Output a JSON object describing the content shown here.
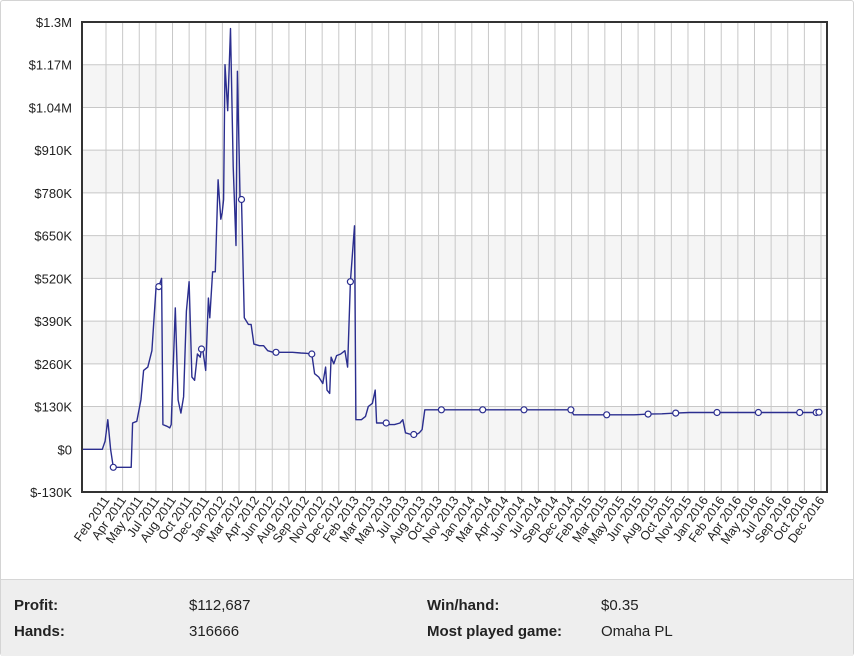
{
  "chart_data": {
    "type": "line",
    "title": "",
    "xlabel": "",
    "ylabel": "",
    "y_ticks": [
      "$-130K",
      "$0",
      "$130K",
      "$260K",
      "$390K",
      "$520K",
      "$650K",
      "$780K",
      "$910K",
      "$1.04M",
      "$1.17M",
      "$1.3M"
    ],
    "y_tick_values": [
      -130000,
      0,
      130000,
      260000,
      390000,
      520000,
      650000,
      780000,
      910000,
      1040000,
      1170000,
      1300000
    ],
    "ylim": [
      -130000,
      1300000
    ],
    "x_ticks": [
      "Feb 2011",
      "Apr 2011",
      "May 2011",
      "Jul 2011",
      "Aug 2011",
      "Oct 2011",
      "Dec 2011",
      "Jan 2012",
      "Mar 2012",
      "Apr 2012",
      "Jun 2012",
      "Aug 2012",
      "Sep 2012",
      "Nov 2012",
      "Dec 2012",
      "Feb 2013",
      "Mar 2013",
      "May 2013",
      "Jul 2013",
      "Aug 2013",
      "Oct 2013",
      "Nov 2013",
      "Jan 2014",
      "Mar 2014",
      "Apr 2014",
      "Jun 2014",
      "Jul 2014",
      "Sep 2014",
      "Dec 2014",
      "Feb 2015",
      "Mar 2015",
      "May 2015",
      "Jun 2015",
      "Aug 2015",
      "Oct 2015",
      "Nov 2015",
      "Jan 2016",
      "Feb 2016",
      "Apr 2016",
      "May 2016",
      "Jul 2016",
      "Sep 2016",
      "Oct 2016",
      "Dec 2016"
    ],
    "grid": true,
    "line_color": "#2b2e8f",
    "series": [
      {
        "points": [
          [
            0,
            0
          ],
          [
            0.7,
            0
          ],
          [
            0.8,
            25000
          ],
          [
            0.9,
            90000
          ],
          [
            1.0,
            0
          ],
          [
            1.1,
            -55000
          ],
          [
            1.3,
            -55000
          ],
          [
            1.6,
            -55000
          ],
          [
            1.75,
            -55000
          ],
          [
            1.8,
            80000
          ],
          [
            1.95,
            85000
          ],
          [
            2.1,
            150000
          ],
          [
            2.2,
            240000
          ],
          [
            2.35,
            250000
          ],
          [
            2.5,
            300000
          ],
          [
            2.65,
            490000
          ],
          [
            2.75,
            495000
          ],
          [
            2.85,
            520000
          ],
          [
            2.9,
            75000
          ],
          [
            3.05,
            70000
          ],
          [
            3.15,
            65000
          ],
          [
            3.2,
            75000
          ],
          [
            3.35,
            430000
          ],
          [
            3.45,
            150000
          ],
          [
            3.55,
            110000
          ],
          [
            3.65,
            160000
          ],
          [
            3.75,
            420000
          ],
          [
            3.85,
            510000
          ],
          [
            3.95,
            220000
          ],
          [
            4.05,
            210000
          ],
          [
            4.15,
            290000
          ],
          [
            4.25,
            280000
          ],
          [
            4.3,
            305000
          ],
          [
            4.35,
            300000
          ],
          [
            4.45,
            240000
          ],
          [
            4.55,
            460000
          ],
          [
            4.6,
            400000
          ],
          [
            4.7,
            540000
          ],
          [
            4.8,
            540000
          ],
          [
            4.9,
            820000
          ],
          [
            5.0,
            700000
          ],
          [
            5.05,
            720000
          ],
          [
            5.1,
            760000
          ],
          [
            5.15,
            1170000
          ],
          [
            5.25,
            1030000
          ],
          [
            5.35,
            1280000
          ],
          [
            5.45,
            860000
          ],
          [
            5.55,
            620000
          ],
          [
            5.6,
            1150000
          ],
          [
            5.7,
            760000
          ],
          [
            5.75,
            760000
          ],
          [
            5.85,
            400000
          ],
          [
            6.0,
            380000
          ],
          [
            6.1,
            380000
          ],
          [
            6.2,
            320000
          ],
          [
            6.4,
            315000
          ],
          [
            6.55,
            315000
          ],
          [
            6.7,
            300000
          ],
          [
            6.9,
            295000
          ],
          [
            7.1,
            295000
          ],
          [
            7.3,
            295000
          ],
          [
            7.6,
            295000
          ],
          [
            7.9,
            293000
          ],
          [
            8.1,
            292000
          ],
          [
            8.3,
            290000
          ],
          [
            8.4,
            230000
          ],
          [
            8.55,
            220000
          ],
          [
            8.7,
            200000
          ],
          [
            8.8,
            250000
          ],
          [
            8.85,
            180000
          ],
          [
            8.95,
            170000
          ],
          [
            9.0,
            280000
          ],
          [
            9.1,
            260000
          ],
          [
            9.2,
            285000
          ],
          [
            9.35,
            290000
          ],
          [
            9.5,
            300000
          ],
          [
            9.6,
            250000
          ],
          [
            9.7,
            510000
          ],
          [
            9.85,
            680000
          ],
          [
            9.9,
            90000
          ],
          [
            10.1,
            90000
          ],
          [
            10.25,
            100000
          ],
          [
            10.35,
            130000
          ],
          [
            10.5,
            140000
          ],
          [
            10.6,
            180000
          ],
          [
            10.65,
            80000
          ],
          [
            10.8,
            80000
          ],
          [
            10.95,
            80000
          ],
          [
            11.1,
            75000
          ],
          [
            11.3,
            75000
          ],
          [
            11.5,
            80000
          ],
          [
            11.6,
            90000
          ],
          [
            11.7,
            50000
          ],
          [
            11.9,
            45000
          ],
          [
            12.1,
            45000
          ],
          [
            12.2,
            50000
          ],
          [
            12.3,
            60000
          ],
          [
            12.4,
            120000
          ],
          [
            12.6,
            120000
          ],
          [
            13.0,
            120000
          ],
          [
            14.0,
            120000
          ],
          [
            15.0,
            120000
          ],
          [
            16.0,
            120000
          ],
          [
            17.0,
            120000
          ],
          [
            17.7,
            120000
          ],
          [
            17.8,
            105000
          ],
          [
            18.5,
            105000
          ],
          [
            19.0,
            105000
          ],
          [
            19.5,
            105000
          ],
          [
            20.0,
            105000
          ],
          [
            20.5,
            107000
          ],
          [
            21.0,
            108000
          ],
          [
            21.5,
            110000
          ],
          [
            22.0,
            112000
          ],
          [
            23.0,
            112000
          ],
          [
            24.0,
            112000
          ],
          [
            25.0,
            112000
          ],
          [
            26.0,
            112000
          ],
          [
            26.5,
            112000
          ],
          [
            26.7,
            112687
          ]
        ],
        "markers": [
          [
            1.1,
            -55000
          ],
          [
            2.75,
            495000
          ],
          [
            4.3,
            305000
          ],
          [
            5.75,
            760000
          ],
          [
            7.0,
            295000
          ],
          [
            8.3,
            290000
          ],
          [
            9.7,
            510000
          ],
          [
            11.0,
            80000
          ],
          [
            12.0,
            45000
          ],
          [
            13.0,
            120000
          ],
          [
            14.5,
            120000
          ],
          [
            16.0,
            120000
          ],
          [
            17.7,
            120000
          ],
          [
            19.0,
            105000
          ],
          [
            20.5,
            107000
          ],
          [
            21.5,
            110000
          ],
          [
            23.0,
            112000
          ],
          [
            24.5,
            112000
          ],
          [
            26.0,
            112000
          ],
          [
            26.6,
            112000
          ],
          [
            26.7,
            112687
          ]
        ]
      }
    ]
  },
  "stats": {
    "profit_label": "Profit:",
    "profit_value": "$112,687",
    "hands_label": "Hands:",
    "hands_value": "316666",
    "winhand_label": "Win/hand:",
    "winhand_value": "$0.35",
    "game_label": "Most played game:",
    "game_value": "Omaha PL"
  }
}
